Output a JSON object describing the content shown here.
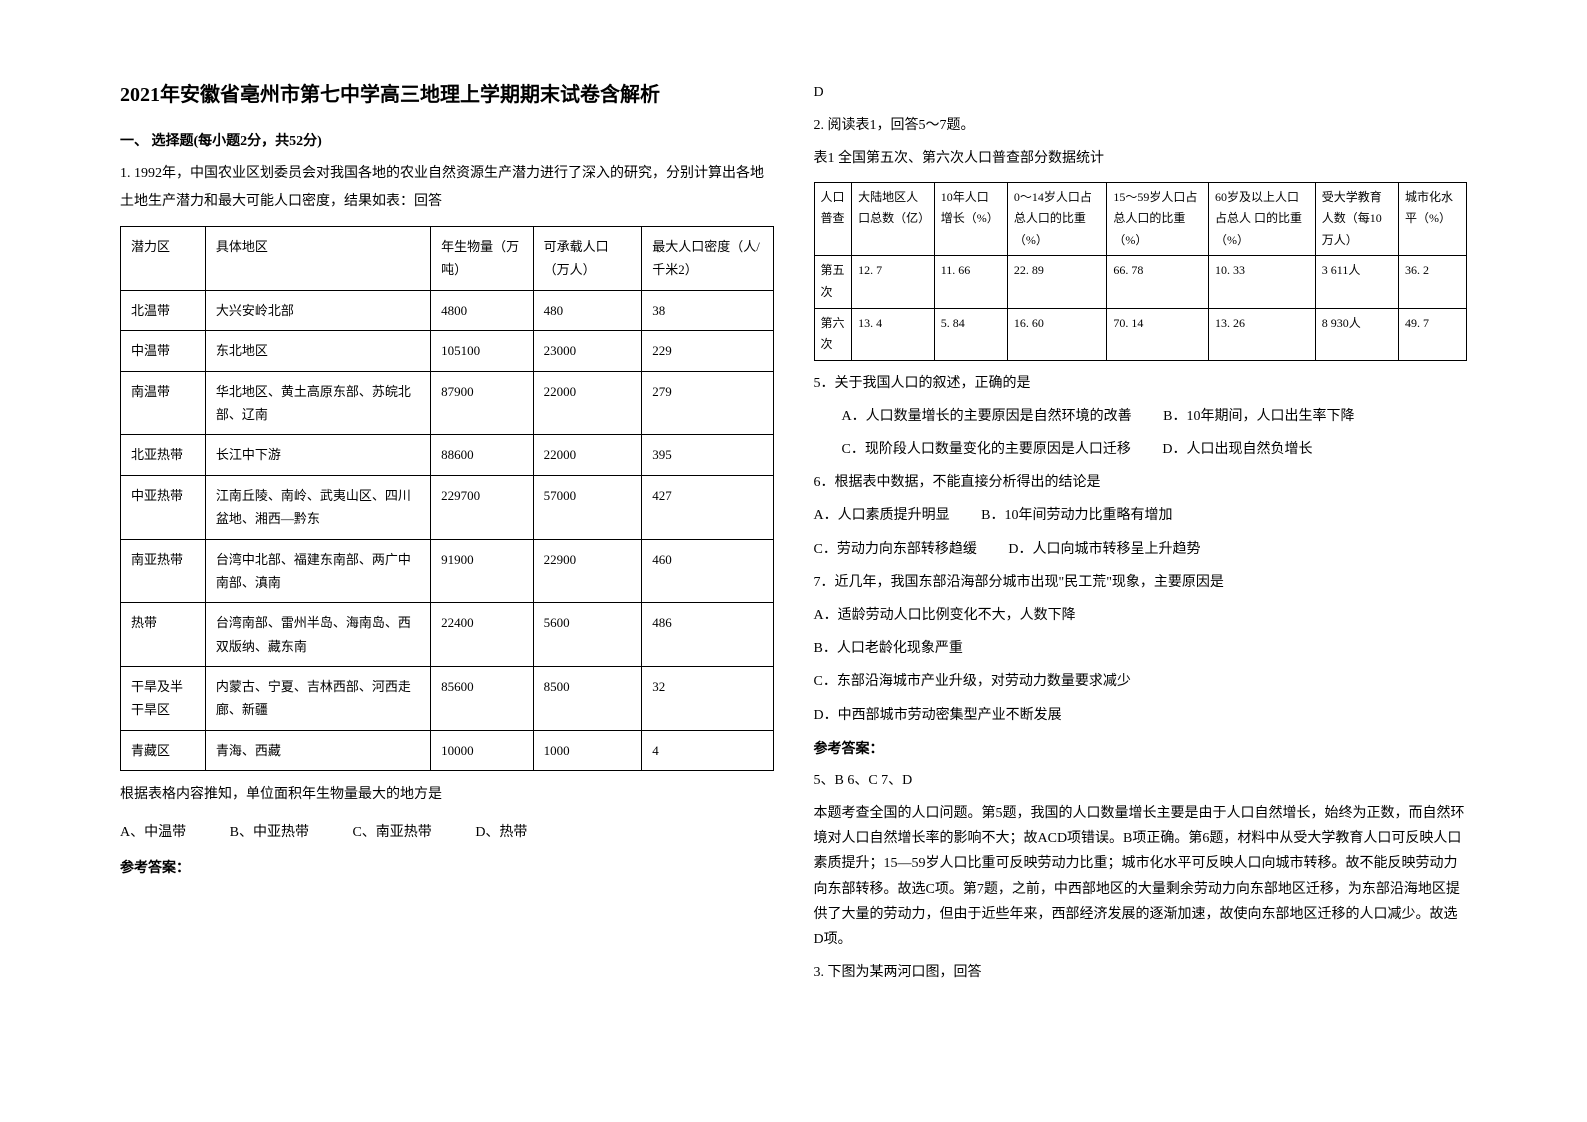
{
  "left": {
    "title": "2021年安徽省亳州市第七中学高三地理上学期期末试卷含解析",
    "section1": "一、 选择题(每小题2分，共52分)",
    "q1_intro": "1. 1992年，中国农业区划委员会对我国各地的农业自然资源生产潜力进行了深入的研究，分别计算出各地土地生产潜力和最大可能人口密度，结果如表：回答",
    "table1": {
      "headers": [
        "潜力区",
        "具体地区",
        "年生物量（万吨）",
        "可承载人口（万人）",
        "最大人口密度（人/千米2）"
      ],
      "rows": [
        [
          "北温带",
          "大兴安岭北部",
          "4800",
          "480",
          "38"
        ],
        [
          "中温带",
          "东北地区",
          "105100",
          "23000",
          "229"
        ],
        [
          "南温带",
          "华北地区、黄土高原东部、苏皖北部、辽南",
          "87900",
          "22000",
          "279"
        ],
        [
          "北亚热带",
          "长江中下游",
          "88600",
          "22000",
          "395"
        ],
        [
          "中亚热带",
          "江南丘陵、南岭、武夷山区、四川盆地、湘西—黔东",
          "229700",
          "57000",
          "427"
        ],
        [
          "南亚热带",
          "台湾中北部、福建东南部、两广中南部、滇南",
          "91900",
          "22900",
          "460"
        ],
        [
          "热带",
          "台湾南部、雷州半岛、海南岛、西双版纳、藏东南",
          "22400",
          "5600",
          "486"
        ],
        [
          "干旱及半干旱区",
          "内蒙古、宁夏、吉林西部、河西走廊、新疆",
          "85600",
          "8500",
          "32"
        ],
        [
          "青藏区",
          "青海、西藏",
          "10000",
          "1000",
          "4"
        ]
      ]
    },
    "q1_text": "根据表格内容推知，单位面积年生物量最大的地方是",
    "q1_options": {
      "a": "A、中温带",
      "b": "B、中亚热带",
      "c": "C、南亚热带",
      "d": "D、热带"
    },
    "answer_label": "参考答案："
  },
  "right": {
    "answer_d": "D",
    "q2_intro": "2. 阅读表1，回答5～7题。",
    "table2_title": "表1 全国第五次、第六次人口普查部分数据统计",
    "table2": {
      "headers": [
        "人口普查",
        "大陆地区人口总数（亿）",
        "10年人口 增长（%）",
        "0～14岁人口占总人口的比重（%）",
        "15～59岁人口占总人口的比重（%）",
        "60岁及以上人口占总人 口的比重（%）",
        "受大学教育人数（每10万人）",
        "城市化水平（%）"
      ],
      "rows": [
        [
          "第五次",
          "12. 7",
          "11. 66",
          "22. 89",
          "66. 78",
          "10. 33",
          "3 611人",
          "36. 2"
        ],
        [
          "第六次",
          "13. 4",
          "5. 84",
          "16. 60",
          "70. 14",
          "13. 26",
          "8 930人",
          "49. 7"
        ]
      ]
    },
    "q5": "5．关于我国人口的叙述，正确的是",
    "q5_opts": {
      "a": "A．人口数量增长的主要原因是自然环境的改善",
      "b": "B．10年期间，人口出生率下降",
      "c": "C．现阶段人口数量变化的主要原因是人口迁移",
      "d": "D．人口出现自然负增长"
    },
    "q6": "6．根据表中数据，不能直接分析得出的结论是",
    "q6_opts": {
      "a": "A．人口素质提升明显",
      "b": "B．10年间劳动力比重略有增加",
      "c": "C．劳动力向东部转移趋缓",
      "d": "D．人口向城市转移呈上升趋势"
    },
    "q7": "7．近几年，我国东部沿海部分城市出现\"民工荒\"现象，主要原因是",
    "q7_opts": {
      "a": "A．适龄劳动人口比例变化不大，人数下降",
      "b": "B．人口老龄化现象严重",
      "c": "C．东部沿海城市产业升级，对劳动力数量要求减少",
      "d": "D．中西部城市劳动密集型产业不断发展"
    },
    "answer_label": "参考答案：",
    "answers": "5、B   6、C   7、D",
    "explanation": "本题考查全国的人口问题。第5题，我国的人口数量增长主要是由于人口自然增长，始终为正数，而自然环境对人口自然增长率的影响不大；故ACD项错误。B项正确。第6题，材料中从受大学教育人口可反映人口素质提升；15—59岁人口比重可反映劳动力比重；城市化水平可反映人口向城市转移。故不能反映劳动力向东部转移。故选C项。第7题，之前，中西部地区的大量剩余劳动力向东部地区迁移，为东部沿海地区提供了大量的劳动力，但由于近些年来，西部经济发展的逐渐加速，故使向东部地区迁移的人口减少。故选D项。",
    "q3": "3. 下图为某两河口图，回答"
  }
}
